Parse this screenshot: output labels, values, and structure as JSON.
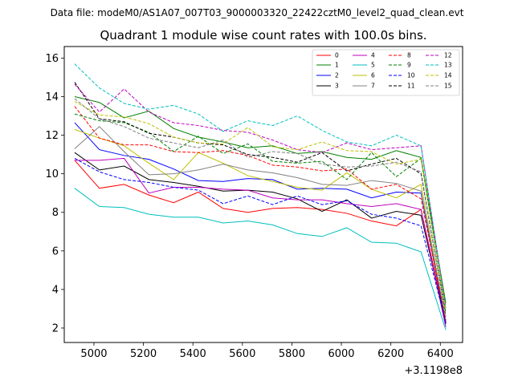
{
  "chart_data": {
    "type": "line",
    "suptitle": "Data file: modeM0/AS1A07_007T03_9000003320_22422cztM0_level2_quad_clean.evt",
    "title": "Quadrant 1 module wise count rates with 100.0s bins.",
    "xlabel": "",
    "ylabel": "",
    "x_offset_label": "+3.1198e8",
    "xlim": [
      4880,
      6490
    ],
    "ylim": [
      1.25,
      16.6
    ],
    "xticks": [
      5000,
      5200,
      5400,
      5600,
      5800,
      6000,
      6200,
      6400
    ],
    "yticks": [
      2,
      4,
      6,
      8,
      10,
      12,
      14,
      16
    ],
    "legend_loc": "upper right",
    "x": [
      4922,
      5022,
      5122,
      5222,
      5322,
      5422,
      5522,
      5622,
      5722,
      5822,
      5922,
      6022,
      6122,
      6222,
      6322,
      6422
    ],
    "series": [
      {
        "name": "0",
        "color": "#ff0000",
        "dash": "solid",
        "values": [
          10.7,
          9.25,
          9.45,
          8.9,
          8.5,
          9.05,
          8.2,
          8.0,
          8.2,
          8.25,
          8.15,
          7.95,
          7.55,
          7.3,
          8.15,
          2.3
        ]
      },
      {
        "name": "1",
        "color": "#008000",
        "dash": "solid",
        "values": [
          14.0,
          13.7,
          12.9,
          13.25,
          12.35,
          11.9,
          11.65,
          11.35,
          11.45,
          11.05,
          11.15,
          10.85,
          10.75,
          11.2,
          10.85,
          3.3
        ]
      },
      {
        "name": "2",
        "color": "#0000ff",
        "dash": "solid",
        "values": [
          12.65,
          11.25,
          10.95,
          10.75,
          10.25,
          9.65,
          9.6,
          9.75,
          9.7,
          9.2,
          9.25,
          9.2,
          8.75,
          9.05,
          9.0,
          2.2
        ]
      },
      {
        "name": "3",
        "color": "#000000",
        "dash": "solid",
        "values": [
          11.1,
          10.2,
          10.4,
          9.7,
          9.55,
          9.35,
          9.1,
          9.15,
          9.05,
          8.7,
          8.05,
          8.65,
          7.7,
          8.05,
          7.85,
          2.25
        ]
      },
      {
        "name": "4",
        "color": "#bf00bf",
        "dash": "solid",
        "values": [
          10.7,
          10.7,
          10.8,
          9.0,
          9.3,
          9.3,
          9.2,
          9.15,
          8.75,
          8.65,
          8.65,
          8.45,
          8.3,
          8.45,
          8.15,
          2.05
        ]
      },
      {
        "name": "5",
        "color": "#00bfbf",
        "dash": "solid",
        "values": [
          9.25,
          8.3,
          8.25,
          7.9,
          7.75,
          7.75,
          7.45,
          7.55,
          7.35,
          6.9,
          6.75,
          7.2,
          6.45,
          6.4,
          5.95,
          1.9
        ]
      },
      {
        "name": "6",
        "color": "#bfbf00",
        "dash": "solid",
        "values": [
          12.3,
          11.85,
          11.45,
          10.55,
          9.7,
          11.1,
          10.55,
          9.9,
          9.6,
          9.3,
          9.15,
          10.05,
          9.2,
          8.75,
          9.45,
          2.35
        ]
      },
      {
        "name": "7",
        "color": "#808080",
        "dash": "solid",
        "values": [
          11.3,
          12.45,
          11.15,
          9.95,
          10.0,
          10.2,
          10.5,
          10.2,
          10.05,
          9.8,
          9.45,
          9.4,
          9.65,
          9.5,
          9.1,
          2.4
        ]
      },
      {
        "name": "8",
        "color": "#ff0000",
        "dash": "dashed",
        "values": [
          13.5,
          11.85,
          11.5,
          11.5,
          11.15,
          11.1,
          11.2,
          10.95,
          10.45,
          10.35,
          10.15,
          10.25,
          9.2,
          9.45,
          8.7,
          2.4
        ]
      },
      {
        "name": "9",
        "color": "#008000",
        "dash": "dashed",
        "values": [
          13.1,
          12.75,
          12.65,
          12.15,
          11.15,
          11.95,
          11.05,
          11.55,
          10.65,
          10.55,
          10.65,
          9.7,
          11.1,
          9.85,
          10.8,
          2.8
        ]
      },
      {
        "name": "10",
        "color": "#0000ff",
        "dash": "dashed",
        "values": [
          10.8,
          10.1,
          9.7,
          9.55,
          9.3,
          9.15,
          8.45,
          8.85,
          8.4,
          8.85,
          8.4,
          8.6,
          7.9,
          7.7,
          7.3,
          2.3
        ]
      },
      {
        "name": "11",
        "color": "#000000",
        "dash": "dashed",
        "values": [
          14.75,
          12.85,
          12.7,
          12.1,
          11.9,
          11.6,
          11.5,
          11.0,
          10.85,
          10.6,
          11.1,
          10.15,
          10.5,
          10.8,
          10.0,
          2.65
        ]
      },
      {
        "name": "12",
        "color": "#bf00bf",
        "dash": "dashed",
        "values": [
          14.65,
          13.2,
          14.4,
          13.2,
          12.65,
          12.5,
          12.25,
          12.15,
          11.75,
          11.25,
          11.1,
          11.6,
          11.25,
          11.35,
          11.45,
          3.05
        ]
      },
      {
        "name": "13",
        "color": "#00bfbf",
        "dash": "dashed",
        "values": [
          15.7,
          14.45,
          13.65,
          13.35,
          13.55,
          13.1,
          12.2,
          12.75,
          12.5,
          13.0,
          12.25,
          11.65,
          11.45,
          12.0,
          11.45,
          3.0
        ]
      },
      {
        "name": "14",
        "color": "#bfbf00",
        "dash": "dashed",
        "values": [
          13.75,
          13.05,
          12.95,
          12.6,
          11.9,
          11.6,
          11.55,
          12.4,
          11.4,
          11.25,
          11.65,
          11.2,
          11.15,
          10.5,
          10.75,
          2.95
        ]
      },
      {
        "name": "15",
        "color": "#808080",
        "dash": "dashed",
        "values": [
          13.9,
          12.85,
          12.45,
          11.85,
          11.6,
          11.35,
          11.75,
          10.85,
          11.15,
          11.05,
          10.5,
          10.35,
          10.4,
          10.6,
          10.1,
          2.6
        ]
      }
    ]
  }
}
